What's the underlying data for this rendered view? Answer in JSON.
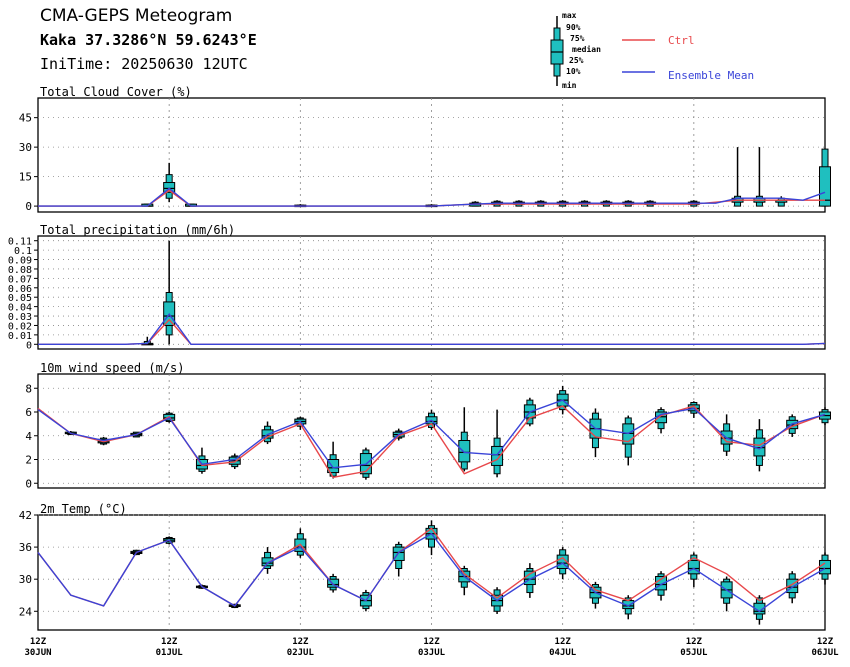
{
  "header": {
    "title": "CMA-GEPS Meteogram",
    "location": "Kaka 37.3286°N 59.6243°E",
    "init_time": "IniTime: 20250630 12UTC"
  },
  "legend": {
    "box_labels": [
      "max",
      "90%",
      "75%",
      "median",
      "25%",
      "10%",
      "min"
    ],
    "ctrl_label": "Ctrl",
    "mean_label": "Ensemble Mean",
    "colors": {
      "ctrl": "#e8484b",
      "mean": "#3a44d8",
      "box": "#1fbfbf",
      "grid": "#888888"
    }
  },
  "time_axis": {
    "labels": [
      {
        "hour": "12Z",
        "date": "30JUN"
      },
      {
        "hour": "12Z",
        "date": "01JUL"
      },
      {
        "hour": "12Z",
        "date": "02JUL"
      },
      {
        "hour": "12Z",
        "date": "03JUL"
      },
      {
        "hour": "12Z",
        "date": "04JUL"
      },
      {
        "hour": "12Z",
        "date": "05JUL"
      },
      {
        "hour": "12Z",
        "date": "06JUL"
      }
    ]
  },
  "chart_data": [
    {
      "type": "box",
      "title": "Total Cloud Cover (%)",
      "x_unit": "hours since 2025-06-30 12UTC, 6-hourly",
      "ylim": [
        -3,
        55
      ],
      "yticks": [
        "0",
        "15",
        "30",
        "45"
      ],
      "ctrl": [
        0,
        0,
        0,
        0,
        0,
        0,
        8,
        0,
        0,
        0,
        0,
        0,
        0,
        0,
        0,
        0,
        0,
        0,
        0,
        0.5,
        1,
        1,
        1,
        1,
        1,
        1,
        1,
        1,
        1,
        1,
        1,
        2,
        3,
        3,
        3,
        3,
        3
      ],
      "mean": [
        0,
        0,
        0,
        0,
        0,
        0,
        9,
        0,
        0,
        0,
        0,
        0,
        0,
        0,
        0,
        0,
        0,
        0,
        0,
        0.5,
        1,
        1.5,
        1.5,
        1.5,
        1.5,
        1.5,
        1.5,
        1.5,
        1.5,
        1.5,
        1.5,
        1.5,
        4,
        4,
        4,
        3,
        7
      ],
      "boxes": [
        {
          "i": 5,
          "min": 0,
          "p10": 0,
          "p25": 0,
          "med": 0,
          "p75": 1,
          "p90": 1,
          "max": 1
        },
        {
          "i": 6,
          "min": 2,
          "p10": 4,
          "p25": 7,
          "med": 9,
          "p75": 12,
          "p90": 16,
          "max": 22
        },
        {
          "i": 7,
          "min": 0,
          "p10": 0,
          "p25": 0,
          "med": 0,
          "p75": 1,
          "p90": 1,
          "max": 1
        },
        {
          "i": 12,
          "min": 0,
          "p10": 0,
          "p25": 0,
          "med": 0,
          "p75": 0.5,
          "p90": 0.5,
          "max": 1
        },
        {
          "i": 18,
          "min": 0,
          "p10": 0,
          "p25": 0,
          "med": 0,
          "p75": 0.5,
          "p90": 0.5,
          "max": 1
        },
        {
          "i": 20,
          "min": 0,
          "p10": 0,
          "p25": 0,
          "med": 1,
          "p75": 1.5,
          "p90": 2,
          "max": 2.5
        },
        {
          "i": 21,
          "min": 0,
          "p10": 0,
          "p25": 1,
          "med": 1,
          "p75": 2,
          "p90": 2.5,
          "max": 3
        },
        {
          "i": 22,
          "min": 0,
          "p10": 0,
          "p25": 1,
          "med": 1,
          "p75": 2,
          "p90": 2.5,
          "max": 3
        },
        {
          "i": 23,
          "min": 0,
          "p10": 0,
          "p25": 1,
          "med": 1.5,
          "p75": 2,
          "p90": 2.5,
          "max": 3
        },
        {
          "i": 24,
          "min": 0,
          "p10": 0,
          "p25": 1,
          "med": 1.5,
          "p75": 2,
          "p90": 2.5,
          "max": 3
        },
        {
          "i": 25,
          "min": 0,
          "p10": 0,
          "p25": 1,
          "med": 1.5,
          "p75": 2,
          "p90": 2.5,
          "max": 3
        },
        {
          "i": 26,
          "min": 0,
          "p10": 0,
          "p25": 1,
          "med": 1,
          "p75": 2,
          "p90": 2.5,
          "max": 3
        },
        {
          "i": 27,
          "min": 0,
          "p10": 0,
          "p25": 1,
          "med": 1,
          "p75": 2,
          "p90": 2.5,
          "max": 3
        },
        {
          "i": 28,
          "min": 0,
          "p10": 0,
          "p25": 1,
          "med": 1,
          "p75": 2,
          "p90": 2.5,
          "max": 3
        },
        {
          "i": 30,
          "min": 0,
          "p10": 0,
          "p25": 1,
          "med": 1,
          "p75": 2,
          "p90": 2.5,
          "max": 3
        },
        {
          "i": 32,
          "min": 0,
          "p10": 0,
          "p25": 2,
          "med": 3,
          "p75": 4,
          "p90": 5,
          "max": 30
        },
        {
          "i": 33,
          "min": 0,
          "p10": 0,
          "p25": 2,
          "med": 3,
          "p75": 4,
          "p90": 5,
          "max": 30
        },
        {
          "i": 34,
          "min": 0,
          "p10": 0,
          "p25": 2,
          "med": 3,
          "p75": 3,
          "p90": 4,
          "max": 5
        },
        {
          "i": 36,
          "min": 0,
          "p10": 0,
          "p25": 0,
          "med": 3,
          "p75": 20,
          "p90": 29,
          "max": 29
        }
      ]
    },
    {
      "type": "box",
      "title": "Total precipitation (mm/6h)",
      "ylim": [
        -0.005,
        0.115
      ],
      "yticks": [
        "0",
        "0.01",
        "0.02",
        "0.03",
        "0.04",
        "0.05",
        "0.06",
        "0.07",
        "0.08",
        "0.09",
        "0.1",
        "0.11"
      ],
      "ctrl": [
        0,
        0,
        0,
        0,
        0,
        0.001,
        0.026,
        0,
        0,
        0,
        0,
        0,
        0,
        0,
        0,
        0,
        0,
        0,
        0,
        0,
        0,
        0,
        0,
        0,
        0,
        0,
        0,
        0,
        0,
        0,
        0,
        0,
        0,
        0,
        0,
        0,
        0.001
      ],
      "mean": [
        0,
        0,
        0,
        0,
        0,
        0.001,
        0.032,
        0,
        0,
        0,
        0,
        0,
        0,
        0,
        0,
        0,
        0,
        0,
        0,
        0,
        0,
        0,
        0,
        0,
        0,
        0,
        0,
        0,
        0,
        0,
        0,
        0,
        0,
        0,
        0,
        0,
        0.001
      ],
      "boxes": [
        {
          "i": 5,
          "min": 0,
          "p10": 0,
          "p25": 0,
          "med": 0,
          "p75": 0.001,
          "p90": 0.003,
          "max": 0.008
        },
        {
          "i": 6,
          "min": 0,
          "p10": 0.01,
          "p25": 0.02,
          "med": 0.03,
          "p75": 0.045,
          "p90": 0.055,
          "max": 0.11
        }
      ]
    },
    {
      "type": "box",
      "title": "10m wind speed (m/s)",
      "ylim": [
        -0.4,
        9.2
      ],
      "yticks": [
        "0",
        "2",
        "4",
        "6",
        "8"
      ],
      "ctrl": [
        6.3,
        4.2,
        3.5,
        4.1,
        5.6,
        1.5,
        1.8,
        3.9,
        5.0,
        0.5,
        1.0,
        4.0,
        5.0,
        0.8,
        2.0,
        5.5,
        6.5,
        3.9,
        3.5,
        5.7,
        6.5,
        3.5,
        3.2,
        4.8,
        5.8
      ],
      "mean": [
        6.2,
        4.2,
        3.6,
        4.1,
        5.5,
        1.6,
        2.0,
        4.1,
        5.2,
        1.3,
        1.6,
        4.1,
        5.3,
        2.6,
        2.4,
        6.0,
        7.0,
        4.6,
        4.2,
        5.8,
        6.3,
        3.8,
        2.9,
        5.0,
        5.8
      ],
      "boxes": [
        {
          "i": 1,
          "min": 4.1,
          "p10": 4.1,
          "p25": 4.2,
          "med": 4.2,
          "p75": 4.3,
          "p90": 4.3,
          "max": 4.4
        },
        {
          "i": 2,
          "min": 3.2,
          "p10": 3.3,
          "p25": 3.4,
          "med": 3.5,
          "p75": 3.7,
          "p90": 3.8,
          "max": 3.9
        },
        {
          "i": 3,
          "min": 3.9,
          "p10": 3.9,
          "p25": 4.0,
          "med": 4.1,
          "p75": 4.2,
          "p90": 4.3,
          "max": 4.3
        },
        {
          "i": 4,
          "min": 5.1,
          "p10": 5.2,
          "p25": 5.3,
          "med": 5.5,
          "p75": 5.8,
          "p90": 5.9,
          "max": 6.0
        },
        {
          "i": 5,
          "min": 0.8,
          "p10": 1.0,
          "p25": 1.2,
          "med": 1.5,
          "p75": 2.0,
          "p90": 2.3,
          "max": 3.0
        },
        {
          "i": 6,
          "min": 1.2,
          "p10": 1.4,
          "p25": 1.6,
          "med": 1.9,
          "p75": 2.2,
          "p90": 2.3,
          "max": 2.5
        },
        {
          "i": 7,
          "min": 3.3,
          "p10": 3.5,
          "p25": 3.8,
          "med": 4.0,
          "p75": 4.5,
          "p90": 4.8,
          "max": 5.2
        },
        {
          "i": 8,
          "min": 4.5,
          "p10": 4.8,
          "p25": 5.0,
          "med": 5.2,
          "p75": 5.4,
          "p90": 5.5,
          "max": 5.6
        },
        {
          "i": 9,
          "min": 0.4,
          "p10": 0.6,
          "p25": 0.9,
          "med": 1.3,
          "p75": 2.0,
          "p90": 2.4,
          "max": 3.5
        },
        {
          "i": 10,
          "min": 0.3,
          "p10": 0.5,
          "p25": 0.8,
          "med": 1.5,
          "p75": 2.5,
          "p90": 2.8,
          "max": 3.0
        },
        {
          "i": 11,
          "min": 3.6,
          "p10": 3.8,
          "p25": 3.9,
          "med": 4.1,
          "p75": 4.3,
          "p90": 4.4,
          "max": 4.6
        },
        {
          "i": 12,
          "min": 4.5,
          "p10": 4.7,
          "p25": 5.0,
          "med": 5.2,
          "p75": 5.6,
          "p90": 5.9,
          "max": 6.2
        },
        {
          "i": 13,
          "min": 1.0,
          "p10": 1.2,
          "p25": 1.8,
          "med": 2.6,
          "p75": 3.6,
          "p90": 4.3,
          "max": 6.4
        },
        {
          "i": 14,
          "min": 0.5,
          "p10": 0.8,
          "p25": 1.5,
          "med": 2.4,
          "p75": 3.1,
          "p90": 3.8,
          "max": 6.2
        },
        {
          "i": 15,
          "min": 4.8,
          "p10": 5.0,
          "p25": 5.5,
          "med": 6.0,
          "p75": 6.6,
          "p90": 7.0,
          "max": 7.2
        },
        {
          "i": 16,
          "min": 5.8,
          "p10": 6.2,
          "p25": 6.5,
          "med": 7.0,
          "p75": 7.5,
          "p90": 7.8,
          "max": 8.2
        },
        {
          "i": 17,
          "min": 2.2,
          "p10": 3.0,
          "p25": 3.8,
          "med": 4.6,
          "p75": 5.4,
          "p90": 5.9,
          "max": 6.3
        },
        {
          "i": 18,
          "min": 1.5,
          "p10": 2.2,
          "p25": 3.3,
          "med": 4.2,
          "p75": 5.0,
          "p90": 5.5,
          "max": 5.7
        },
        {
          "i": 19,
          "min": 4.2,
          "p10": 4.6,
          "p25": 5.1,
          "med": 5.6,
          "p75": 6.0,
          "p90": 6.2,
          "max": 6.4
        },
        {
          "i": 20,
          "min": 5.5,
          "p10": 5.9,
          "p25": 6.1,
          "med": 6.3,
          "p75": 6.6,
          "p90": 6.8,
          "max": 6.9
        },
        {
          "i": 21,
          "min": 2.3,
          "p10": 2.7,
          "p25": 3.3,
          "med": 3.8,
          "p75": 4.4,
          "p90": 5.0,
          "max": 5.8
        },
        {
          "i": 22,
          "min": 1.0,
          "p10": 1.5,
          "p25": 2.3,
          "med": 3.0,
          "p75": 3.8,
          "p90": 4.5,
          "max": 5.4
        },
        {
          "i": 23,
          "min": 3.9,
          "p10": 4.2,
          "p25": 4.6,
          "med": 4.9,
          "p75": 5.3,
          "p90": 5.6,
          "max": 5.8
        },
        {
          "i": 24,
          "min": 4.9,
          "p10": 5.1,
          "p25": 5.4,
          "med": 5.7,
          "p75": 6.0,
          "p90": 6.2,
          "max": 6.4
        }
      ]
    },
    {
      "type": "box",
      "title": "2m Temp (°C)",
      "ylim": [
        20.5,
        42
      ],
      "yticks": [
        "24",
        "30",
        "36",
        "42"
      ],
      "ctrl": [
        35,
        27,
        25,
        35,
        37.3,
        28.6,
        25,
        33,
        36.5,
        29,
        26,
        35,
        39.5,
        31,
        26.5,
        31,
        34,
        28,
        26,
        30,
        34,
        31,
        26,
        29,
        33
      ],
      "mean": [
        35,
        27,
        25,
        35,
        37.3,
        28.6,
        25,
        33,
        36,
        29,
        26,
        35,
        38.5,
        30.5,
        26,
        30,
        33,
        27.5,
        25,
        29,
        32,
        28,
        24,
        28.5,
        32
      ],
      "boxes": [
        {
          "i": 3,
          "min": 34.5,
          "p10": 34.6,
          "p25": 34.8,
          "med": 35,
          "p75": 35.2,
          "p90": 35.4,
          "max": 35.5
        },
        {
          "i": 4,
          "min": 36.5,
          "p10": 36.7,
          "p25": 37,
          "med": 37.3,
          "p75": 37.6,
          "p90": 37.8,
          "max": 38
        },
        {
          "i": 5,
          "min": 28.2,
          "p10": 28.3,
          "p25": 28.5,
          "med": 28.6,
          "p75": 28.7,
          "p90": 28.8,
          "max": 29
        },
        {
          "i": 6,
          "min": 24.6,
          "p10": 24.7,
          "p25": 24.9,
          "med": 25,
          "p75": 25.2,
          "p90": 25.3,
          "max": 25.4
        },
        {
          "i": 7,
          "min": 31,
          "p10": 32,
          "p25": 32.5,
          "med": 33,
          "p75": 34,
          "p90": 35,
          "max": 36
        },
        {
          "i": 8,
          "min": 34,
          "p10": 34.5,
          "p25": 35.2,
          "med": 36,
          "p75": 37.5,
          "p90": 38.5,
          "max": 39.5
        },
        {
          "i": 9,
          "min": 27.5,
          "p10": 28,
          "p25": 28.5,
          "med": 29,
          "p75": 30,
          "p90": 30.5,
          "max": 31
        },
        {
          "i": 10,
          "min": 24,
          "p10": 24.5,
          "p25": 25,
          "med": 26,
          "p75": 27,
          "p90": 27.5,
          "max": 28
        },
        {
          "i": 11,
          "min": 30.5,
          "p10": 32,
          "p25": 33.5,
          "med": 35,
          "p75": 36,
          "p90": 36.5,
          "max": 37
        },
        {
          "i": 12,
          "min": 34.5,
          "p10": 36,
          "p25": 37.5,
          "med": 38.5,
          "p75": 39.5,
          "p90": 40,
          "max": 41
        },
        {
          "i": 13,
          "min": 27,
          "p10": 28.5,
          "p25": 29.5,
          "med": 30.5,
          "p75": 31.5,
          "p90": 32,
          "max": 32.5
        },
        {
          "i": 14,
          "min": 23.5,
          "p10": 24,
          "p25": 25,
          "med": 26,
          "p75": 27,
          "p90": 28,
          "max": 28.5
        },
        {
          "i": 15,
          "min": 26.5,
          "p10": 27.5,
          "p25": 29,
          "med": 30,
          "p75": 31.5,
          "p90": 32,
          "max": 33
        },
        {
          "i": 16,
          "min": 30,
          "p10": 31,
          "p25": 32,
          "med": 33,
          "p75": 34.5,
          "p90": 35.5,
          "max": 36
        },
        {
          "i": 17,
          "min": 24.5,
          "p10": 25.5,
          "p25": 26.5,
          "med": 27.5,
          "p75": 28.5,
          "p90": 29,
          "max": 29.5
        },
        {
          "i": 18,
          "min": 22.5,
          "p10": 23.5,
          "p25": 24.5,
          "med": 25,
          "p75": 26,
          "p90": 26.5,
          "max": 27
        },
        {
          "i": 19,
          "min": 26,
          "p10": 27,
          "p25": 28,
          "med": 29,
          "p75": 30.5,
          "p90": 31,
          "max": 31.5
        },
        {
          "i": 20,
          "min": 28.5,
          "p10": 30,
          "p25": 31,
          "med": 32,
          "p75": 33.5,
          "p90": 34.5,
          "max": 35
        },
        {
          "i": 21,
          "min": 24,
          "p10": 25.5,
          "p25": 26.5,
          "med": 28,
          "p75": 29.5,
          "p90": 30,
          "max": 30.5
        },
        {
          "i": 22,
          "min": 21.5,
          "p10": 22.5,
          "p25": 23.5,
          "med": 24,
          "p75": 25.5,
          "p90": 26.5,
          "max": 27
        },
        {
          "i": 23,
          "min": 25.5,
          "p10": 26.5,
          "p25": 27.5,
          "med": 28.5,
          "p75": 30,
          "p90": 31,
          "max": 31.5
        },
        {
          "i": 24,
          "min": 29,
          "p10": 30,
          "p25": 31,
          "med": 32,
          "p75": 33.5,
          "p90": 34.5,
          "max": 35
        }
      ]
    }
  ]
}
